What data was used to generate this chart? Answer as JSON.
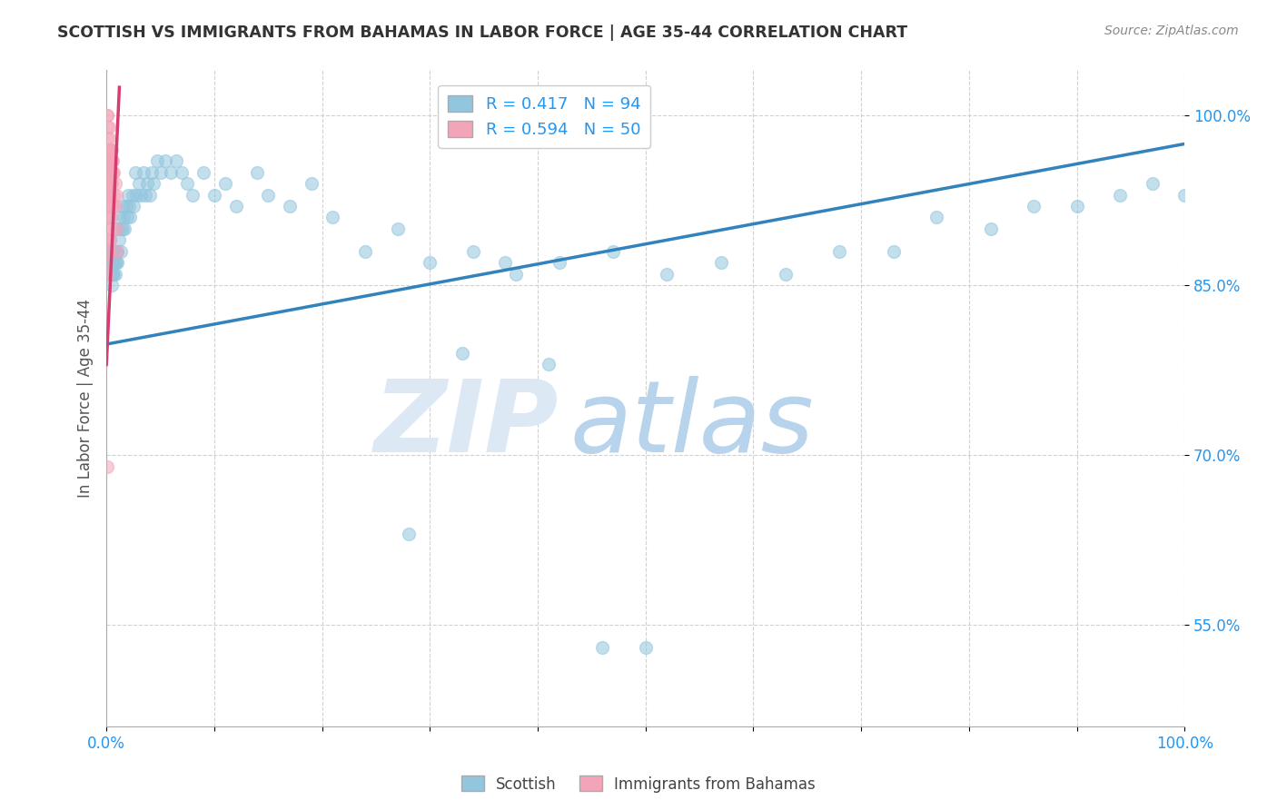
{
  "title": "SCOTTISH VS IMMIGRANTS FROM BAHAMAS IN LABOR FORCE | AGE 35-44 CORRELATION CHART",
  "source": "Source: ZipAtlas.com",
  "ylabel": "In Labor Force | Age 35-44",
  "xlim": [
    0.0,
    1.0
  ],
  "ylim": [
    0.46,
    1.04
  ],
  "x_ticks": [
    0.0,
    0.1,
    0.2,
    0.3,
    0.4,
    0.5,
    0.6,
    0.7,
    0.8,
    0.9,
    1.0
  ],
  "x_tick_labels": [
    "0.0%",
    "",
    "",
    "",
    "",
    "",
    "",
    "",
    "",
    "",
    "100.0%"
  ],
  "y_ticks": [
    0.55,
    0.7,
    0.85,
    1.0
  ],
  "y_tick_labels": [
    "55.0%",
    "70.0%",
    "85.0%",
    "100.0%"
  ],
  "grid_color": "#cccccc",
  "background_color": "#ffffff",
  "watermark_zip": "ZIP",
  "watermark_atlas": "atlas",
  "legend_R_blue": "0.417",
  "legend_N_blue": "94",
  "legend_R_pink": "0.594",
  "legend_N_pink": "50",
  "blue_color": "#92c5de",
  "blue_line_color": "#3182bd",
  "pink_color": "#f4a4b8",
  "pink_line_color": "#d63d6e",
  "title_color": "#333333",
  "axis_label_color": "#2196F3",
  "scatter_blue_x": [
    0.002,
    0.002,
    0.003,
    0.003,
    0.003,
    0.004,
    0.004,
    0.004,
    0.004,
    0.005,
    0.005,
    0.005,
    0.005,
    0.005,
    0.006,
    0.006,
    0.006,
    0.007,
    0.007,
    0.007,
    0.008,
    0.008,
    0.009,
    0.009,
    0.01,
    0.01,
    0.01,
    0.012,
    0.012,
    0.013,
    0.013,
    0.015,
    0.015,
    0.016,
    0.017,
    0.018,
    0.019,
    0.02,
    0.021,
    0.022,
    0.024,
    0.025,
    0.027,
    0.028,
    0.03,
    0.032,
    0.034,
    0.036,
    0.038,
    0.04,
    0.042,
    0.044,
    0.047,
    0.05,
    0.055,
    0.06,
    0.065,
    0.07,
    0.075,
    0.08,
    0.09,
    0.1,
    0.11,
    0.12,
    0.14,
    0.15,
    0.17,
    0.19,
    0.21,
    0.24,
    0.27,
    0.3,
    0.34,
    0.38,
    0.42,
    0.47,
    0.52,
    0.57,
    0.63,
    0.68,
    0.73,
    0.77,
    0.82,
    0.86,
    0.9,
    0.94,
    0.97,
    1.0,
    0.28,
    0.33,
    0.37,
    0.41,
    0.46,
    0.5
  ],
  "scatter_blue_y": [
    0.87,
    0.88,
    0.87,
    0.89,
    0.88,
    0.86,
    0.87,
    0.88,
    0.86,
    0.87,
    0.88,
    0.87,
    0.86,
    0.85,
    0.88,
    0.87,
    0.86,
    0.87,
    0.88,
    0.86,
    0.87,
    0.86,
    0.88,
    0.87,
    0.9,
    0.88,
    0.87,
    0.91,
    0.89,
    0.9,
    0.88,
    0.92,
    0.9,
    0.91,
    0.9,
    0.92,
    0.91,
    0.93,
    0.92,
    0.91,
    0.93,
    0.92,
    0.95,
    0.93,
    0.94,
    0.93,
    0.95,
    0.93,
    0.94,
    0.93,
    0.95,
    0.94,
    0.96,
    0.95,
    0.96,
    0.95,
    0.96,
    0.95,
    0.94,
    0.93,
    0.95,
    0.93,
    0.94,
    0.92,
    0.95,
    0.93,
    0.92,
    0.94,
    0.91,
    0.88,
    0.9,
    0.87,
    0.88,
    0.86,
    0.87,
    0.88,
    0.86,
    0.87,
    0.86,
    0.88,
    0.88,
    0.91,
    0.9,
    0.92,
    0.92,
    0.93,
    0.94,
    0.93,
    0.63,
    0.79,
    0.87,
    0.78,
    0.53,
    0.53
  ],
  "scatter_pink_x": [
    0.001,
    0.001,
    0.001,
    0.001,
    0.001,
    0.001,
    0.001,
    0.001,
    0.001,
    0.001,
    0.001,
    0.001,
    0.001,
    0.001,
    0.001,
    0.001,
    0.002,
    0.002,
    0.002,
    0.002,
    0.002,
    0.002,
    0.002,
    0.002,
    0.002,
    0.002,
    0.003,
    0.003,
    0.003,
    0.003,
    0.003,
    0.003,
    0.004,
    0.004,
    0.004,
    0.004,
    0.005,
    0.005,
    0.005,
    0.005,
    0.006,
    0.006,
    0.006,
    0.007,
    0.007,
    0.008,
    0.008,
    0.009,
    0.009,
    0.01
  ],
  "scatter_pink_y": [
    1.0,
    1.0,
    0.99,
    0.98,
    0.97,
    0.96,
    0.95,
    0.94,
    0.93,
    0.92,
    0.91,
    0.9,
    0.89,
    0.88,
    0.87,
    0.86,
    0.99,
    0.98,
    0.97,
    0.96,
    0.95,
    0.94,
    0.93,
    0.92,
    0.91,
    0.88,
    0.97,
    0.96,
    0.95,
    0.94,
    0.93,
    0.89,
    0.97,
    0.96,
    0.95,
    0.91,
    0.97,
    0.96,
    0.94,
    0.9,
    0.96,
    0.95,
    0.92,
    0.95,
    0.93,
    0.94,
    0.92,
    0.93,
    0.9,
    0.88
  ],
  "scatter_pink_outlier_x": [
    0.001
  ],
  "scatter_pink_outlier_y": [
    0.69
  ],
  "blue_trend_x0": 0.0,
  "blue_trend_x1": 1.0,
  "blue_trend_y0": 0.798,
  "blue_trend_y1": 0.975,
  "pink_trend_x0": 0.0,
  "pink_trend_x1": 0.012,
  "pink_trend_y0": 0.78,
  "pink_trend_y1": 1.025
}
